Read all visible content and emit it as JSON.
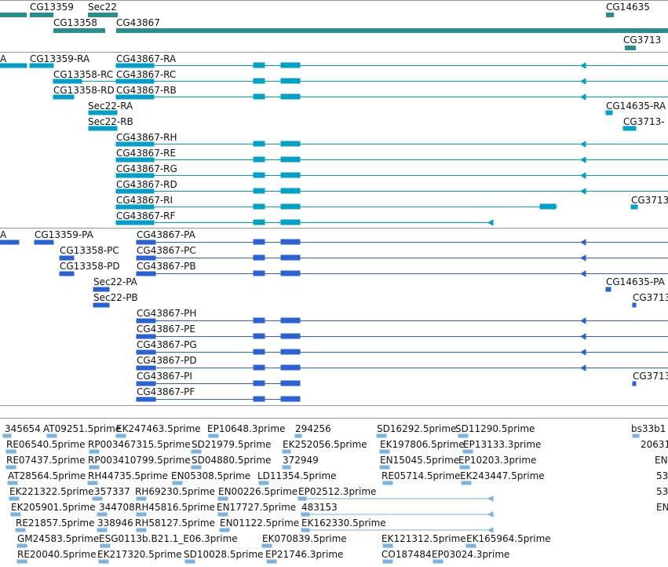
{
  "colors": {
    "gene": "#2a8c8c",
    "transcript": "#00a0c8",
    "protein": "#2a62d4",
    "est": "#7ab2e0"
  },
  "gene_track": {
    "labels": [
      "CG13359",
      "Sec22",
      "CG14635",
      "CG13358",
      "CG43867",
      "CG3713"
    ]
  },
  "transcript_track": {
    "labels": [
      "CG13359-RA",
      "CG43867-RA",
      "CG13358-RC",
      "CG43867-RC",
      "CG13358-RD",
      "CG43867-RB",
      "Sec22-RA",
      "CG14635-RA",
      "Sec22-RB",
      "CG3713-",
      "CG43867-RH",
      "CG43867-RE",
      "CG43867-RG",
      "CG43867-RD",
      "CG43867-RI",
      "CG3713",
      "CG43867-RF",
      "A"
    ]
  },
  "protein_track": {
    "labels": [
      "A",
      "CG13359-PA",
      "CG43867-PA",
      "CG13358-PC",
      "CG43867-PC",
      "CG13358-PD",
      "CG43867-PB",
      "Sec22-PA",
      "CG14635-PA",
      "Sec22-PB",
      "CG3713",
      "CG43867-PH",
      "CG43867-PE",
      "CG43867-PG",
      "CG43867-PD",
      "CG43867-PI",
      "CG3713",
      "CG43867-PF"
    ]
  },
  "est_track": {
    "labels": [
      "345654",
      "AT09251.5prime",
      "EK247463.5prime",
      "EP10648.3prime",
      "294256",
      "SD16292.5prime",
      "SD11290.5prime",
      "bs33b1",
      "RE06540.5prime",
      "RP003467315.5prime",
      "SD21979.5prime",
      "EK252056.5prime",
      "EK197806.5prime",
      "EP13133.3prime",
      "20631",
      "RE07437.5prime",
      "RP003410799.5prime",
      "SD04880.5prime",
      "372949",
      "EN15045.5prime",
      "EP10203.3prime",
      "EN",
      "AT28564.5prime",
      "RH44735.5prime",
      "EN05308.5prime",
      "LD11354.5prime",
      "RE05714.5prime",
      "EK243447.5prime",
      "53",
      "EK221322.5prime",
      "357337",
      "RH69230.5prime",
      "EN00226.5prime",
      "EP02512.3prime",
      "53",
      "EK205901.5prime",
      "344708",
      "RH45816.5prime",
      "EN17727.5prime",
      "483153",
      "EN",
      "RE21857.5prime",
      "338946",
      "RH58127.5prime",
      "EN01122.5prime",
      "EK162330.5prime",
      "GM24583.5prime",
      "ESG0113b.B21.1_E06.3prime",
      "EK070839.5prime",
      "EK121312.5prime",
      "EK165964.5prime",
      "RE20040.5prime",
      "EK217320.5prime",
      "SD10028.5prime",
      "EP21746.3prime",
      "CO187484",
      "EP03024.3prime"
    ]
  }
}
